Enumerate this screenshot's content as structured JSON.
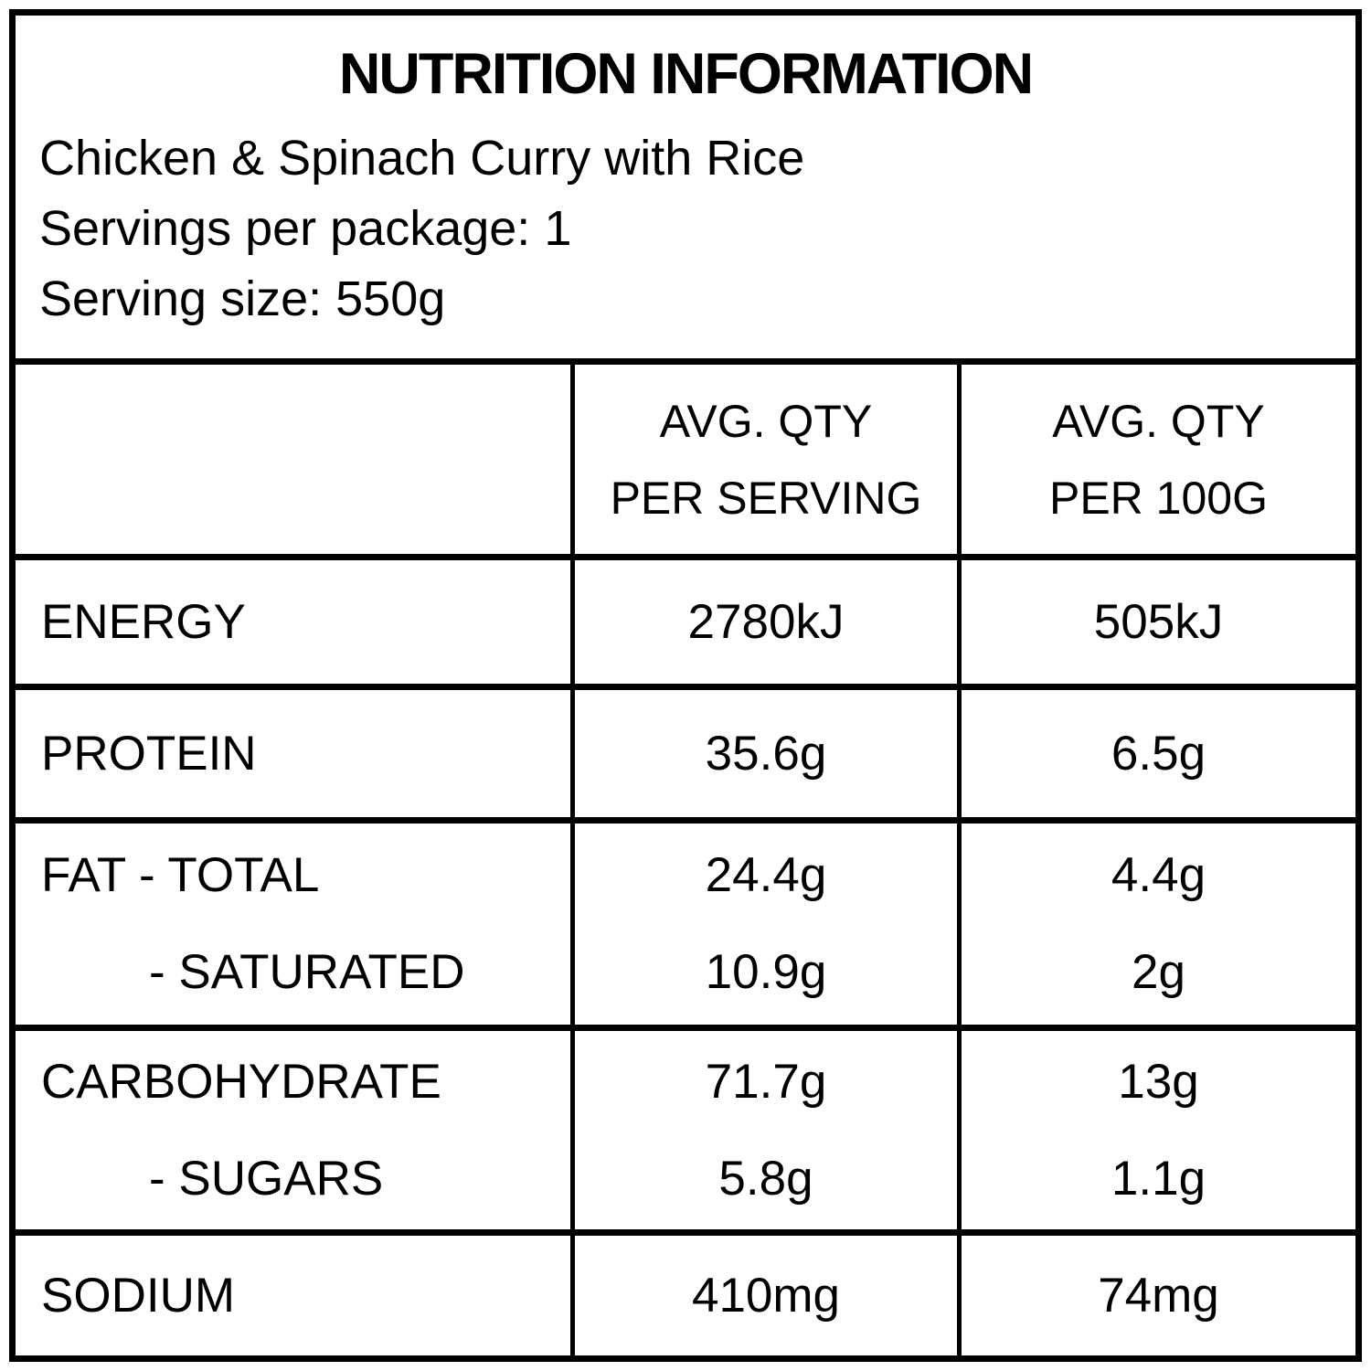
{
  "colors": {
    "text": "#000000",
    "background": "#ffffff",
    "border": "#000000"
  },
  "header": {
    "title": "NUTRITION INFORMATION",
    "product": "Chicken & Spinach Curry with Rice",
    "servings_per_package": "Servings per package: 1",
    "serving_size": "Serving size: 550g"
  },
  "table": {
    "header": {
      "per_serving": {
        "line1": "AVG. QTY",
        "line2": "PER SERVING"
      },
      "per_100g": {
        "line1": "AVG. QTY",
        "line2": "PER 100G"
      }
    },
    "rows": [
      {
        "label": "ENERGY",
        "per_serving": "2780kJ",
        "per_100g": "505kJ"
      },
      {
        "label": "PROTEIN",
        "per_serving": "35.6g",
        "per_100g": "6.5g"
      },
      {
        "label": "FAT - TOTAL",
        "sublabel": "- SATURATED",
        "per_serving": "24.4g",
        "per_serving_sub": "10.9g",
        "per_100g": "4.4g",
        "per_100g_sub": "2g"
      },
      {
        "label": "CARBOHYDRATE",
        "sublabel": "- SUGARS",
        "per_serving": "71.7g",
        "per_serving_sub": "5.8g",
        "per_100g": "13g",
        "per_100g_sub": "1.1g"
      },
      {
        "label": "SODIUM",
        "per_serving": "410mg",
        "per_100g": "74mg"
      }
    ]
  }
}
